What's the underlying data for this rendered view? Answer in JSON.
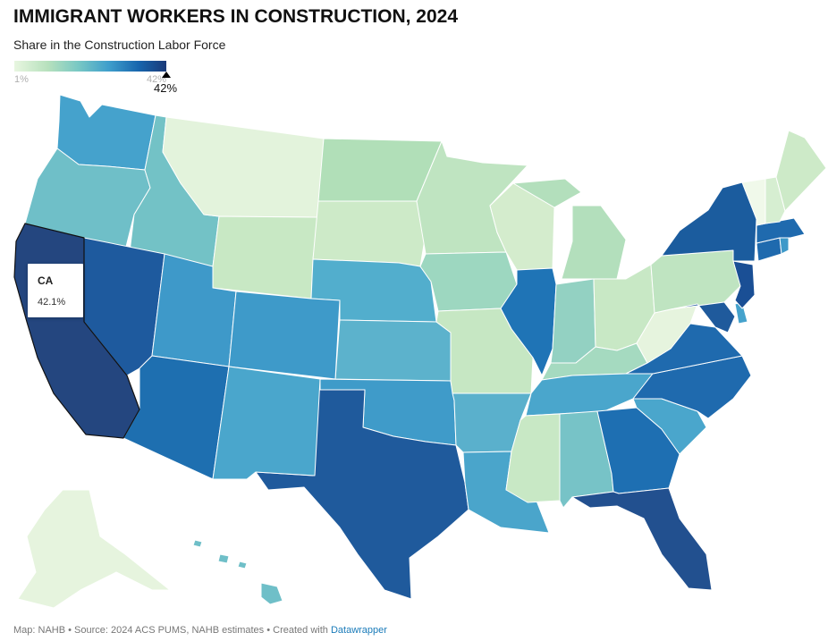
{
  "title": "IMMIGRANT WORKERS IN CONSTRUCTION, 2024",
  "subtitle": "Share in the Construction Labor Force",
  "legend": {
    "min_label": "1%",
    "max_label": "42%",
    "marker_label": "42%",
    "min_value": 1,
    "max_value": 42,
    "marker_value": 42.1,
    "colors": [
      "#e8f6e0",
      "#b7e1bd",
      "#79c8c4",
      "#3f9fcc",
      "#1765ad",
      "#1b3a78"
    ]
  },
  "tooltip": {
    "state": "CA",
    "value": "42.1%"
  },
  "footer": {
    "text": "Map: NAHB • Source: 2024 ACS PUMS, NAHB estimates • Created with",
    "link_text": "Datawrapper"
  },
  "states": [
    {
      "id": "CA",
      "color": "#24467f"
    },
    {
      "id": "NV",
      "color": "#1e5a9e"
    },
    {
      "id": "OR",
      "color": "#6fbfc8"
    },
    {
      "id": "WA",
      "color": "#45a2cc"
    },
    {
      "id": "ID",
      "color": "#73c2c6"
    },
    {
      "id": "MT",
      "color": "#e3f3dc"
    },
    {
      "id": "WY",
      "color": "#c8e8c4"
    },
    {
      "id": "UT",
      "color": "#3e99c9"
    },
    {
      "id": "AZ",
      "color": "#1e6fb0"
    },
    {
      "id": "CO",
      "color": "#3e9ac9"
    },
    {
      "id": "NM",
      "color": "#4aa6cc"
    },
    {
      "id": "ND",
      "color": "#b1dfb8"
    },
    {
      "id": "SD",
      "color": "#cdeac8"
    },
    {
      "id": "NE",
      "color": "#52aecd"
    },
    {
      "id": "KS",
      "color": "#5cb2cc"
    },
    {
      "id": "OK",
      "color": "#3f9bc9"
    },
    {
      "id": "TX",
      "color": "#1f5a9c"
    },
    {
      "id": "MN",
      "color": "#bfe4c1"
    },
    {
      "id": "IA",
      "color": "#9dd7c0"
    },
    {
      "id": "MO",
      "color": "#c6e7c3"
    },
    {
      "id": "AR",
      "color": "#5ab0cc"
    },
    {
      "id": "LA",
      "color": "#4aa5cb"
    },
    {
      "id": "WI",
      "color": "#d4eccd"
    },
    {
      "id": "IL",
      "color": "#1f74b6"
    },
    {
      "id": "MI",
      "color": "#b3dfbc"
    },
    {
      "id": "IN",
      "color": "#93d1c2"
    },
    {
      "id": "OH",
      "color": "#c8e8c5"
    },
    {
      "id": "KY",
      "color": "#a5dac0"
    },
    {
      "id": "TN",
      "color": "#4aa6cc"
    },
    {
      "id": "MS",
      "color": "#c8e8c5"
    },
    {
      "id": "AL",
      "color": "#77c3c7"
    },
    {
      "id": "GA",
      "color": "#1e6fb2"
    },
    {
      "id": "FL",
      "color": "#22508f"
    },
    {
      "id": "SC",
      "color": "#4aa6cc"
    },
    {
      "id": "NC",
      "color": "#1f6aae"
    },
    {
      "id": "VA",
      "color": "#1f6aae"
    },
    {
      "id": "WV",
      "color": "#e6f4de"
    },
    {
      "id": "MD",
      "color": "#1f5a9c"
    },
    {
      "id": "DE",
      "color": "#45a2cc"
    },
    {
      "id": "PA",
      "color": "#bfe4c1"
    },
    {
      "id": "NJ",
      "color": "#1a4f95"
    },
    {
      "id": "NY",
      "color": "#1b5c9e"
    },
    {
      "id": "CT",
      "color": "#1f6aae"
    },
    {
      "id": "RI",
      "color": "#3e99c9"
    },
    {
      "id": "MA",
      "color": "#1f6aae"
    },
    {
      "id": "VT",
      "color": "#f0f9ea"
    },
    {
      "id": "NH",
      "color": "#d6eed1"
    },
    {
      "id": "ME",
      "color": "#cdeac8"
    },
    {
      "id": "AK",
      "color": "#e6f4de"
    },
    {
      "id": "HI",
      "color": "#6fbfc8"
    }
  ]
}
